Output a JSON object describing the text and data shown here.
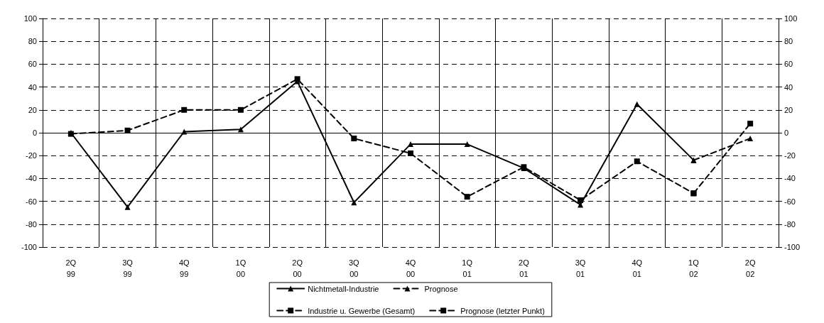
{
  "chart_data": {
    "type": "line",
    "categories": [
      "2Q\n99",
      "3Q\n99",
      "4Q\n99",
      "1Q\n00",
      "2Q\n00",
      "3Q\n00",
      "4Q\n00",
      "1Q\n01",
      "2Q\n01",
      "3Q\n01",
      "4Q\n01",
      "1Q\n02",
      "2Q\n02"
    ],
    "series": [
      {
        "name": "Nichtmetall-Industrie",
        "color": "#000000",
        "marker": "triangle",
        "line_style": "solid",
        "values": [
          0,
          -65,
          1,
          3,
          45,
          -61,
          -10,
          -10,
          -31,
          -63,
          25,
          -24,
          null
        ]
      },
      {
        "name": "Prognose",
        "color": "#000000",
        "marker": "triangle",
        "line_style": "dashed",
        "values": [
          null,
          null,
          null,
          null,
          null,
          null,
          null,
          null,
          null,
          null,
          null,
          -24,
          -5
        ]
      },
      {
        "name": "Industrie u. Gewerbe (Gesamt)",
        "color": "#000000",
        "marker": "square",
        "line_style": "dashed",
        "values": [
          -1,
          2,
          20,
          20,
          47,
          -5,
          -18,
          -56,
          -30,
          -59,
          -25,
          -53,
          null
        ]
      },
      {
        "name": "Prognose (letzter Punkt)",
        "color": "#000000",
        "marker": "square",
        "line_style": "dashed",
        "values": [
          null,
          null,
          null,
          null,
          null,
          null,
          null,
          null,
          null,
          null,
          null,
          -53,
          8
        ]
      }
    ],
    "ylim": [
      -100,
      100
    ],
    "yticks": [
      -100,
      -80,
      -60,
      -40,
      -20,
      0,
      20,
      40,
      60,
      80,
      100
    ],
    "y2lim": [
      -100,
      100
    ],
    "y2ticks": [
      -100,
      -80,
      -60,
      -40,
      -20,
      0,
      20,
      40,
      60,
      80,
      100
    ],
    "grid": true,
    "legend": "bottom"
  }
}
